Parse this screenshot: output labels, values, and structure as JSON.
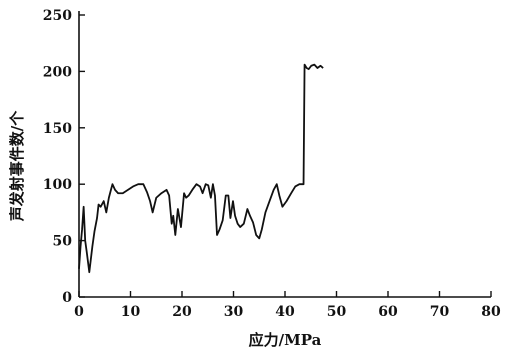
{
  "chart_data": {
    "type": "line",
    "title": "",
    "xlabel": "应力/MPa",
    "ylabel": "声发射事件数/个",
    "xlim": [
      0,
      80
    ],
    "ylim": [
      0,
      250
    ],
    "xticks": [
      0,
      10,
      20,
      30,
      40,
      50,
      60,
      70,
      80
    ],
    "yticks": [
      0,
      50,
      100,
      150,
      200,
      250
    ],
    "x_tick_labels": [
      "0",
      "10",
      "20",
      "30",
      "40",
      "50",
      "60",
      "70",
      "80"
    ],
    "y_tick_labels": [
      "0",
      "50",
      "100",
      "150",
      "200",
      "250"
    ],
    "grid": false,
    "legend": "none",
    "series": [
      {
        "x": [
          0,
          0.3,
          0.6,
          0.9,
          1.2,
          1.5,
          2.0,
          2.6,
          3.0,
          3.5,
          3.8,
          4.2,
          4.8,
          5.3,
          5.8,
          6.2,
          6.5,
          7.0,
          7.6,
          8.5,
          9.5,
          10.5,
          11.5,
          12.5,
          13.2,
          13.8,
          14.3,
          15.0,
          16.0,
          17.0,
          17.5,
          18.0,
          18.3,
          18.7,
          19.2,
          19.8,
          20.4,
          20.8,
          21.3,
          22.0,
          22.8,
          23.5,
          24.0,
          24.6,
          25.1,
          25.6,
          26.0,
          26.4,
          26.8,
          27.3,
          27.9,
          28.5,
          29.0,
          29.4,
          29.9,
          30.3,
          30.8,
          31.3,
          32.0,
          32.7,
          33.2,
          33.8,
          34.4,
          35.0,
          35.5,
          36.2,
          37.0,
          37.8,
          38.4,
          38.9,
          39.5,
          40.3,
          41.2,
          42.0,
          42.8,
          43.6,
          43.8,
          44.2,
          44.6,
          45.1,
          45.7,
          46.3,
          46.9,
          47.4
        ],
        "values": [
          25,
          45,
          60,
          80,
          50,
          40,
          22,
          45,
          58,
          70,
          82,
          80,
          85,
          75,
          88,
          95,
          100,
          95,
          92,
          92,
          95,
          98,
          100,
          100,
          93,
          85,
          75,
          88,
          92,
          95,
          90,
          65,
          72,
          55,
          78,
          62,
          92,
          88,
          90,
          95,
          100,
          98,
          92,
          100,
          99,
          88,
          100,
          90,
          55,
          60,
          68,
          90,
          90,
          70,
          85,
          72,
          65,
          62,
          65,
          78,
          72,
          66,
          55,
          52,
          60,
          75,
          85,
          95,
          100,
          90,
          80,
          85,
          92,
          98,
          100,
          100,
          206,
          203,
          202,
          205,
          206,
          203,
          205,
          203
        ]
      }
    ]
  }
}
